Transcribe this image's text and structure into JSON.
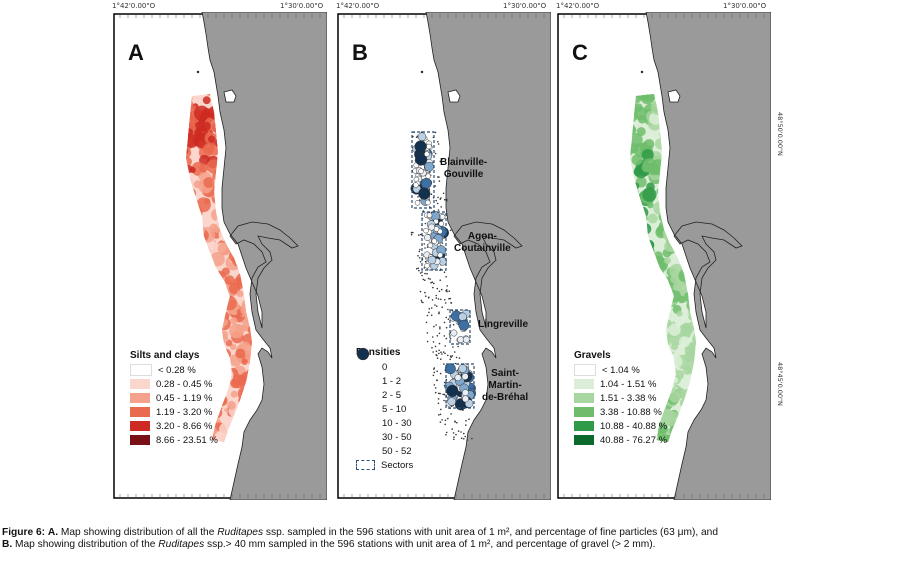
{
  "coords": {
    "left_top": "1°42'0.00\"O",
    "right_top": "1°30'0.00\"O",
    "lat_upper": "48°50'0.00\"N",
    "lat_lower": "48°45'0.00\"N"
  },
  "panels": [
    {
      "letter": "A",
      "legend_title": "Silts and clays",
      "legend": [
        {
          "label": "< 0.28 %",
          "color": "#ffffff"
        },
        {
          "label": "0.28 - 0.45 %",
          "color": "#fbd6cc"
        },
        {
          "label": "0.45 - 1.19 %",
          "color": "#f4a28b"
        },
        {
          "label": "1.19 - 3.20 %",
          "color": "#ea6a4f"
        },
        {
          "label": "3.20 - 8.66 %",
          "color": "#cc2a22"
        },
        {
          "label": "8.66 - 23.51 %",
          "color": "#7a1018"
        }
      ]
    },
    {
      "letter": "B",
      "legend_title": "Densities",
      "legend": [
        {
          "label": "0",
          "size": 1.5,
          "color": "#333333"
        },
        {
          "label": "1 - 2",
          "size": 2.5,
          "color": "#ffffff"
        },
        {
          "label": "2 - 5",
          "size": 3.2,
          "color": "#e9eef4"
        },
        {
          "label": "5 - 10",
          "size": 4,
          "color": "#bcd0e4"
        },
        {
          "label": "10 - 30",
          "size": 4.6,
          "color": "#7fa6cc"
        },
        {
          "label": "30 - 50",
          "size": 5.2,
          "color": "#3c6fa3"
        },
        {
          "label": "50 - 52",
          "size": 5.8,
          "color": "#14304f"
        }
      ],
      "sectors_label": "Sectors",
      "sector_names": [
        "Blainville-\nGouville",
        "Agon-\nCoutainville",
        "Lingreville",
        "Saint-\nMartin-\nde-Bréhal"
      ]
    },
    {
      "letter": "C",
      "legend_title": "Gravels",
      "legend": [
        {
          "label": "< 1.04 %",
          "color": "#ffffff"
        },
        {
          "label": "1.04 - 1.51 %",
          "color": "#dceed8"
        },
        {
          "label": "1.51 - 3.38 %",
          "color": "#a8d6a0"
        },
        {
          "label": "3.38 - 10.88 %",
          "color": "#6fbd6c"
        },
        {
          "label": "10.88 - 40.88 %",
          "color": "#2f9a48"
        },
        {
          "label": "40.88 - 76.27 %",
          "color": "#0b6a2c"
        }
      ]
    }
  ],
  "caption": {
    "fig_label": "Figure 6:",
    "a_label": "A.",
    "a_text_1": " Map showing distribution of all the ",
    "a_italic": "Ruditapes",
    "a_text_2": " ssp. sampled in the 596 stations with unit area of 1 m², and percentage of fine particles (63 μm), and",
    "b_label": "B.",
    "b_text_1": " Map showing distribution of the ",
    "b_italic": "Ruditapes",
    "b_text_2": " ssp.> 40 mm sampled in the 596 stations with unit area of 1 m², and  percentage of gravel (> 2 mm)."
  }
}
